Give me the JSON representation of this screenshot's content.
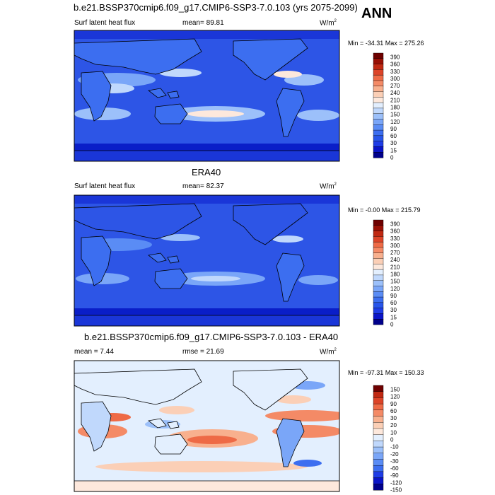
{
  "season": "ANN",
  "colors": {
    "abs_levels": [
      "#00008b",
      "#0a14c8",
      "#1e3ce6",
      "#2855ea",
      "#3c6ef0",
      "#5a8cf5",
      "#7aa6f8",
      "#9cc0fa",
      "#c0d8fc",
      "#e3effe",
      "#fde8dc",
      "#fbcfb6",
      "#f8b08e",
      "#f48a66",
      "#ee6a46",
      "#dc4428",
      "#c02812",
      "#990f05",
      "#6e0000"
    ],
    "diff_levels": [
      "#00008b",
      "#0a14c8",
      "#1e3ce6",
      "#3c6ef0",
      "#5a8cf5",
      "#7aa6f8",
      "#9cc0fa",
      "#c0d8fc",
      "#e3effe",
      "#fde8dc",
      "#fbcfb6",
      "#f8b08e",
      "#f48a66",
      "#ee6a46",
      "#dc4428",
      "#c02812",
      "#6e0000"
    ]
  },
  "panels": [
    {
      "id": "model",
      "title": "b.e21.BSSP370cmip6.f09_g17.CMIP6-SSP3-7.0.103 (yrs 2075-2099)",
      "left_label": "Surf latent heat flux",
      "center_label": "mean=  89.81",
      "units_base": "W/m",
      "units_exp": "2",
      "minmax": "Min = -34.31 Max = 275.26",
      "colorbar_labels": [
        "390",
        "360",
        "330",
        "300",
        "270",
        "240",
        "210",
        "180",
        "150",
        "120",
        "90",
        "60",
        "30",
        "15",
        "0"
      ]
    },
    {
      "id": "obs",
      "title": "ERA40",
      "left_label": "Surf latent heat flux",
      "center_label": "mean=  82.37",
      "units_base": "W/m",
      "units_exp": "2",
      "minmax": "Min = -0.00 Max = 215.79",
      "colorbar_labels": [
        "390",
        "360",
        "330",
        "300",
        "270",
        "240",
        "210",
        "180",
        "150",
        "120",
        "90",
        "60",
        "30",
        "15",
        "0"
      ]
    },
    {
      "id": "diff",
      "title": "b.e21.BSSP370cmip6.f09_g17.CMIP6-SSP3-7.0.103 - ERA40",
      "left_label": "mean =   7.44",
      "center_label": "rmse =  21.69",
      "units_base": "W/m",
      "units_exp": "2",
      "minmax": "Min = -97.31 Max = 150.33",
      "colorbar_labels": [
        "150",
        "120",
        "90",
        "60",
        "30",
        "20",
        "10",
        "0",
        "-10",
        "-20",
        "-30",
        "-60",
        "-90",
        "-120",
        "-150"
      ]
    }
  ]
}
